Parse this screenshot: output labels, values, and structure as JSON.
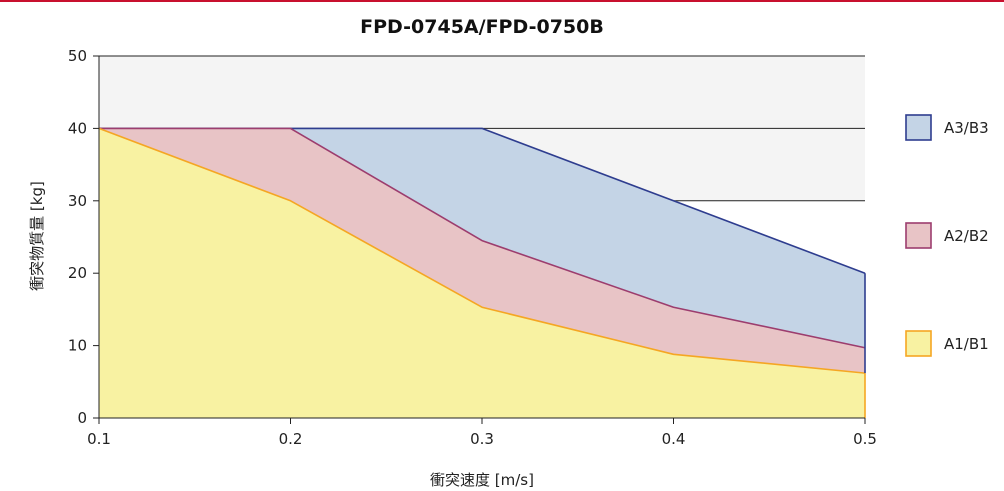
{
  "chart_data": {
    "type": "area",
    "title": "FPD-0745A/FPD-0750B",
    "xlabel": "衝突速度 [m/s]",
    "ylabel": "衝突物質量 [kg]",
    "x": [
      0.1,
      0.2,
      0.3,
      0.4,
      0.5
    ],
    "x_tick_labels": [
      "0.1",
      "0.2",
      "0.3",
      "0.4",
      "0.5"
    ],
    "xlim": [
      0.1,
      0.5
    ],
    "ylim": [
      0,
      50
    ],
    "y_ticks": [
      0,
      10,
      20,
      30,
      40,
      50
    ],
    "y_tick_labels": [
      "0",
      "10",
      "20",
      "30",
      "40",
      "50"
    ],
    "grid": "horizontal, top band shaded",
    "legend_position": "right",
    "series": [
      {
        "name": "A3/B3",
        "values": [
          40,
          40,
          40,
          30,
          20
        ],
        "fill": "#c4d4e6",
        "stroke": "#2e3d8f"
      },
      {
        "name": "A2/B2",
        "values": [
          40,
          40,
          24.5,
          15.3,
          9.7
        ],
        "fill": "#e8c4c6",
        "stroke": "#9c3d6e"
      },
      {
        "name": "A1/B1",
        "values": [
          40,
          30,
          15.3,
          8.8,
          6.2
        ],
        "fill": "#f8f2a2",
        "stroke": "#f5a623"
      }
    ]
  }
}
